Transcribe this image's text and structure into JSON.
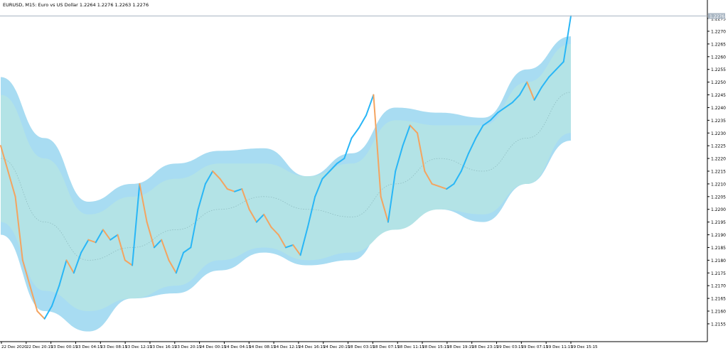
{
  "window": {
    "title": "EURUSD, M15:  Euro vs US Dollar  1.2264 1.2276 1.2263 1.2276"
  },
  "chart_data": {
    "type": "line",
    "symbol": "EURUSD",
    "timeframe": "M15",
    "description": "Euro vs US Dollar",
    "ohlc_last": {
      "open": 1.2264,
      "high": 1.2276,
      "low": 1.2263,
      "close": 1.2276
    },
    "current_price_label": "1.2276",
    "ylim": [
      1.2148,
      1.2282
    ],
    "y_ticks": [
      "1.2275",
      "1.2270",
      "1.2265",
      "1.2260",
      "1.2255",
      "1.2250",
      "1.2245",
      "1.2240",
      "1.2235",
      "1.2230",
      "1.2225",
      "1.2220",
      "1.2215",
      "1.2210",
      "1.2205",
      "1.2200",
      "1.2195",
      "1.2190",
      "1.2185",
      "1.2180",
      "1.2175",
      "1.2170",
      "1.2165",
      "1.2160",
      "1.2155"
    ],
    "x_ticks": [
      "22 Dec 2020",
      "22 Dec 20:15",
      "23 Dec 00:15",
      "23 Dec 04:15",
      "23 Dec 08:15",
      "23 Dec 12:15",
      "23 Dec 16:15",
      "23 Dec 20:15",
      "24 Dec 00:15",
      "24 Dec 04:15",
      "24 Dec 08:15",
      "24 Dec 12:15",
      "24 Dec 16:15",
      "24 Dec 20:15",
      "28 Dec 03:15",
      "28 Dec 07:15",
      "28 Dec 11:15",
      "28 Dec 15:15",
      "28 Dec 19:15",
      "28 Dec 23:15",
      "29 Dec 03:15",
      "29 Dec 07:15",
      "29 Dec 11:15",
      "29 Dec 15:15"
    ],
    "grid": false,
    "colors": {
      "up_bars": "#29b6f6",
      "down_bars": "#f4a460",
      "outer_band": "#a8dcf2",
      "inner_band": "#b3e3e6",
      "midline": "#8fbcc0",
      "price_line": "#a9b6c3",
      "axis": "#000000",
      "label_bg": "#a9b6c3"
    },
    "series": [
      {
        "role": "price_close",
        "points": [
          {
            "x": 0,
            "y": 1.2225
          },
          {
            "x": 2,
            "y": 1.2215
          },
          {
            "x": 4,
            "y": 1.2205
          },
          {
            "x": 6,
            "y": 1.218
          },
          {
            "x": 8,
            "y": 1.217
          },
          {
            "x": 10,
            "y": 1.216
          },
          {
            "x": 12,
            "y": 1.2157
          },
          {
            "x": 14,
            "y": 1.2162
          },
          {
            "x": 16,
            "y": 1.217
          },
          {
            "x": 18,
            "y": 1.218
          },
          {
            "x": 20,
            "y": 1.2175
          },
          {
            "x": 22,
            "y": 1.2183
          },
          {
            "x": 24,
            "y": 1.2188
          },
          {
            "x": 26,
            "y": 1.2187
          },
          {
            "x": 28,
            "y": 1.2192
          },
          {
            "x": 30,
            "y": 1.2188
          },
          {
            "x": 32,
            "y": 1.219
          },
          {
            "x": 34,
            "y": 1.218
          },
          {
            "x": 36,
            "y": 1.2178
          },
          {
            "x": 38,
            "y": 1.221
          },
          {
            "x": 40,
            "y": 1.2195
          },
          {
            "x": 42,
            "y": 1.2185
          },
          {
            "x": 44,
            "y": 1.2188
          },
          {
            "x": 46,
            "y": 1.218
          },
          {
            "x": 48,
            "y": 1.2175
          },
          {
            "x": 50,
            "y": 1.2183
          },
          {
            "x": 52,
            "y": 1.2185
          },
          {
            "x": 54,
            "y": 1.22
          },
          {
            "x": 56,
            "y": 1.221
          },
          {
            "x": 58,
            "y": 1.2215
          },
          {
            "x": 60,
            "y": 1.2212
          },
          {
            "x": 62,
            "y": 1.2208
          },
          {
            "x": 64,
            "y": 1.2207
          },
          {
            "x": 66,
            "y": 1.2208
          },
          {
            "x": 68,
            "y": 1.22
          },
          {
            "x": 70,
            "y": 1.2195
          },
          {
            "x": 72,
            "y": 1.2198
          },
          {
            "x": 74,
            "y": 1.2193
          },
          {
            "x": 76,
            "y": 1.219
          },
          {
            "x": 78,
            "y": 1.2185
          },
          {
            "x": 80,
            "y": 1.2186
          },
          {
            "x": 82,
            "y": 1.2182
          },
          {
            "x": 84,
            "y": 1.2193
          },
          {
            "x": 86,
            "y": 1.2205
          },
          {
            "x": 88,
            "y": 1.2212
          },
          {
            "x": 90,
            "y": 1.2215
          },
          {
            "x": 92,
            "y": 1.2218
          },
          {
            "x": 94,
            "y": 1.222
          },
          {
            "x": 96,
            "y": 1.2228
          },
          {
            "x": 98,
            "y": 1.2232
          },
          {
            "x": 100,
            "y": 1.2237
          },
          {
            "x": 102,
            "y": 1.2245
          },
          {
            "x": 104,
            "y": 1.2205
          },
          {
            "x": 106,
            "y": 1.2195
          },
          {
            "x": 108,
            "y": 1.2215
          },
          {
            "x": 110,
            "y": 1.2225
          },
          {
            "x": 112,
            "y": 1.2233
          },
          {
            "x": 114,
            "y": 1.223
          },
          {
            "x": 116,
            "y": 1.2215
          },
          {
            "x": 118,
            "y": 1.221
          },
          {
            "x": 120,
            "y": 1.2209
          },
          {
            "x": 122,
            "y": 1.2208
          },
          {
            "x": 124,
            "y": 1.221
          },
          {
            "x": 126,
            "y": 1.2215
          },
          {
            "x": 128,
            "y": 1.2222
          },
          {
            "x": 130,
            "y": 1.2228
          },
          {
            "x": 132,
            "y": 1.2233
          },
          {
            "x": 134,
            "y": 1.2235
          },
          {
            "x": 136,
            "y": 1.2238
          },
          {
            "x": 138,
            "y": 1.224
          },
          {
            "x": 140,
            "y": 1.2242
          },
          {
            "x": 142,
            "y": 1.2245
          },
          {
            "x": 144,
            "y": 1.225
          },
          {
            "x": 146,
            "y": 1.2243
          },
          {
            "x": 148,
            "y": 1.2248
          },
          {
            "x": 150,
            "y": 1.2252
          },
          {
            "x": 152,
            "y": 1.2255
          },
          {
            "x": 154,
            "y": 1.2258
          },
          {
            "x": 156,
            "y": 1.2276
          }
        ]
      },
      {
        "role": "channel_mid",
        "points": [
          {
            "x": 0,
            "y": 1.222
          },
          {
            "x": 12,
            "y": 1.2195
          },
          {
            "x": 24,
            "y": 1.218
          },
          {
            "x": 36,
            "y": 1.2185
          },
          {
            "x": 48,
            "y": 1.2192
          },
          {
            "x": 60,
            "y": 1.22
          },
          {
            "x": 72,
            "y": 1.2205
          },
          {
            "x": 84,
            "y": 1.22
          },
          {
            "x": 96,
            "y": 1.2197
          },
          {
            "x": 108,
            "y": 1.221
          },
          {
            "x": 120,
            "y": 1.222
          },
          {
            "x": 132,
            "y": 1.2215
          },
          {
            "x": 144,
            "y": 1.2228
          },
          {
            "x": 156,
            "y": 1.2246
          }
        ]
      },
      {
        "role": "channel_inner",
        "points": [
          {
            "x": 0,
            "y": 1.2245,
            "y2": 1.2195
          },
          {
            "x": 12,
            "y": 1.222,
            "y2": 1.2168
          },
          {
            "x": 24,
            "y": 1.2198,
            "y2": 1.216
          },
          {
            "x": 36,
            "y": 1.2205,
            "y2": 1.2165
          },
          {
            "x": 48,
            "y": 1.2212,
            "y2": 1.217
          },
          {
            "x": 60,
            "y": 1.2218,
            "y2": 1.218
          },
          {
            "x": 72,
            "y": 1.2218,
            "y2": 1.2185
          },
          {
            "x": 84,
            "y": 1.2213,
            "y2": 1.218
          },
          {
            "x": 96,
            "y": 1.2218,
            "y2": 1.2183
          },
          {
            "x": 108,
            "y": 1.2235,
            "y2": 1.2192
          },
          {
            "x": 120,
            "y": 1.2233,
            "y2": 1.22
          },
          {
            "x": 132,
            "y": 1.2233,
            "y2": 1.2198
          },
          {
            "x": 144,
            "y": 1.225,
            "y2": 1.221
          },
          {
            "x": 156,
            "y": 1.2265,
            "y2": 1.223
          }
        ]
      },
      {
        "role": "channel_outer",
        "points": [
          {
            "x": 0,
            "y": 1.2252,
            "y2": 1.219
          },
          {
            "x": 12,
            "y": 1.2228,
            "y2": 1.216
          },
          {
            "x": 24,
            "y": 1.2203,
            "y2": 1.2152
          },
          {
            "x": 36,
            "y": 1.221,
            "y2": 1.2165
          },
          {
            "x": 48,
            "y": 1.2218,
            "y2": 1.2167
          },
          {
            "x": 60,
            "y": 1.2223,
            "y2": 1.2176
          },
          {
            "x": 72,
            "y": 1.2224,
            "y2": 1.2183
          },
          {
            "x": 84,
            "y": 1.2213,
            "y2": 1.2178
          },
          {
            "x": 96,
            "y": 1.2222,
            "y2": 1.218
          },
          {
            "x": 108,
            "y": 1.224,
            "y2": 1.2198
          },
          {
            "x": 120,
            "y": 1.2238,
            "y2": 1.22
          },
          {
            "x": 132,
            "y": 1.2236,
            "y2": 1.2195
          },
          {
            "x": 144,
            "y": 1.2255,
            "y2": 1.221
          },
          {
            "x": 156,
            "y": 1.2268,
            "y2": 1.2227
          }
        ]
      }
    ]
  }
}
